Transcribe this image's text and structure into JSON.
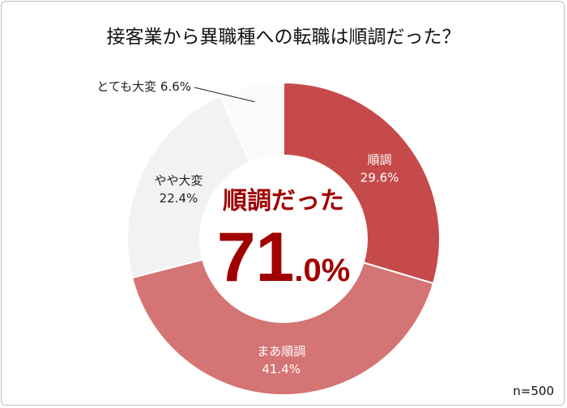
{
  "chart_data": {
    "type": "pie",
    "title": "接客業から異職種への転職は順調だった？",
    "donut": true,
    "slices": [
      {
        "label": "順調",
        "value": 29.6,
        "display": "29.6%",
        "color": "#c64a4a",
        "text_color": "#ffffff"
      },
      {
        "label": "まあ順調",
        "value": 41.4,
        "display": "41.4%",
        "color": "#d57474",
        "text_color": "#ffffff"
      },
      {
        "label": "やや大変",
        "value": 22.4,
        "display": "22.4%",
        "color": "#f2f2f2",
        "text_color": "#222222"
      },
      {
        "label": "とても大変",
        "value": 6.6,
        "display": "6.6%",
        "color": "#fafafa",
        "text_color": "#222222"
      }
    ],
    "center_label": "順調だった",
    "center_value_main": "71",
    "center_value_sub": ".0%",
    "center_color": "#a00000",
    "sample": "n=500"
  }
}
